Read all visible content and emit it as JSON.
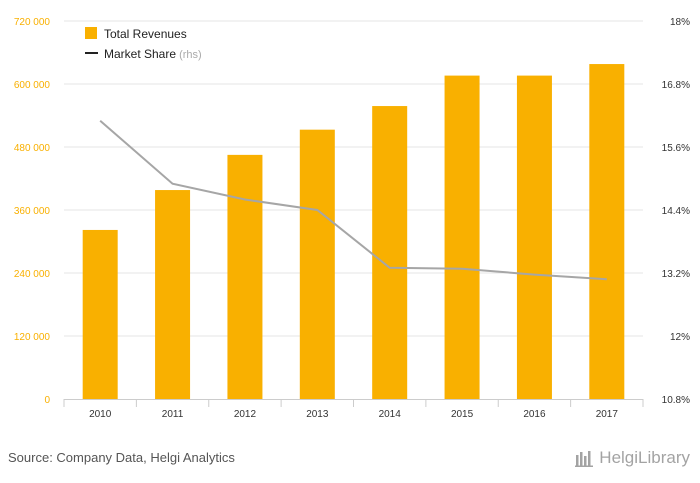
{
  "chart_data": {
    "type": "bar+line",
    "categories": [
      "2010",
      "2011",
      "2012",
      "2013",
      "2014",
      "2015",
      "2016",
      "2017"
    ],
    "series": [
      {
        "name": "Total Revenues",
        "type": "bar",
        "axis": "left",
        "color": "#F9B000",
        "values": [
          322000,
          398000,
          465000,
          513000,
          558000,
          616000,
          616000,
          638000
        ]
      },
      {
        "name": "Market Share",
        "type": "line",
        "axis": "right",
        "color": "#A6A6A6",
        "values": [
          16.1,
          14.9,
          14.6,
          14.4,
          13.3,
          13.28,
          13.17,
          13.08
        ]
      }
    ],
    "left_axis": {
      "min": 0,
      "max": 720000,
      "ticks": [
        0,
        120000,
        240000,
        360000,
        480000,
        600000,
        720000
      ],
      "tick_labels": [
        "0",
        "120 000",
        "240 000",
        "360 000",
        "480 000",
        "600 000",
        "720 000"
      ]
    },
    "right_axis": {
      "min": 10.8,
      "max": 18,
      "ticks": [
        10.8,
        12,
        13.2,
        14.4,
        15.6,
        16.8,
        18
      ],
      "tick_labels": [
        "10.8%",
        "12%",
        "13.2%",
        "14.4%",
        "15.6%",
        "16.8%",
        "18%"
      ]
    },
    "legend": {
      "placement": "top-left",
      "items": [
        {
          "label": "Total Revenues",
          "suffix": "",
          "kind": "bar",
          "color": "#F9B000"
        },
        {
          "label": "Market Share",
          "suffix": "(rhs)",
          "kind": "line",
          "color": "#222222"
        }
      ]
    },
    "grid": "horizontal",
    "colors": {
      "left_tick": "#F9B000",
      "right_tick": "#333333",
      "grid": "#E6E6E6",
      "axis": "#CCCCCC"
    }
  },
  "footer": {
    "source": "Source: Company Data, Helgi Analytics",
    "logo_text": "HelgiLibrary"
  }
}
